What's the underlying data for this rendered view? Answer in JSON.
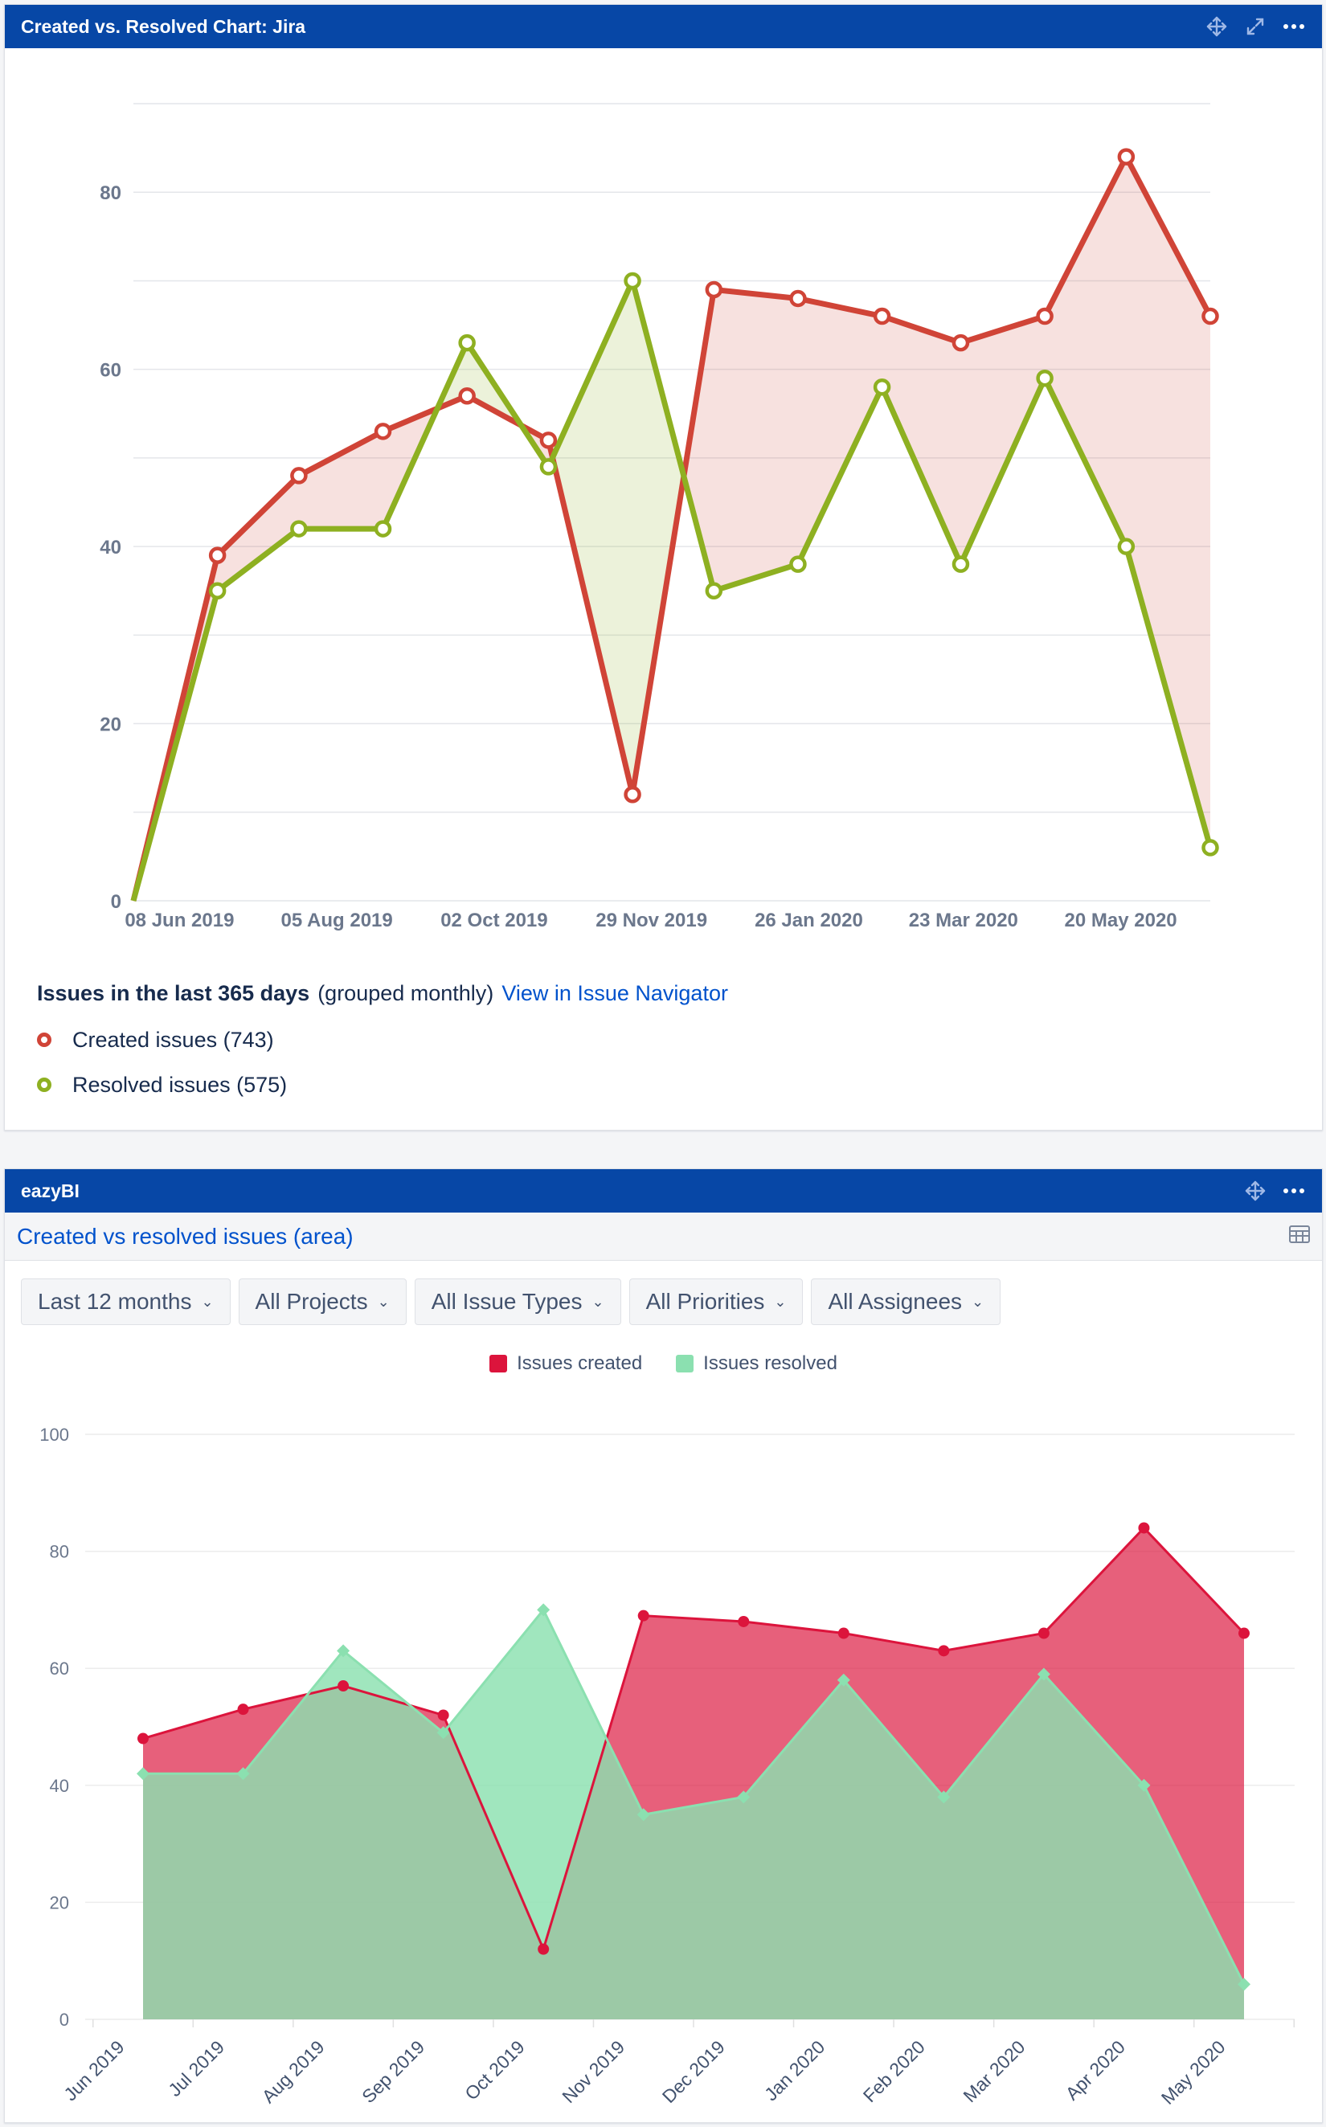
{
  "gadget1": {
    "title": "Created vs. Resolved Chart: Jira",
    "legend": {
      "heading": "Issues in the last 365 days",
      "grouping": "(grouped monthly)",
      "link": "View in Issue Navigator",
      "created_label": "Created issues (743)",
      "resolved_label": "Resolved issues (575)"
    }
  },
  "gadget2": {
    "title": "eazyBI",
    "report_name": "Created vs resolved issues (area)",
    "filters": [
      "Last 12 months",
      "All Projects",
      "All Issue Types",
      "All Priorities",
      "All Assignees"
    ],
    "legend": {
      "created": "Issues created",
      "resolved": "Issues resolved"
    }
  },
  "icons": [
    "move-icon",
    "expand-icon",
    "more-icon",
    "table-icon",
    "chevron-down-icon"
  ],
  "colors": {
    "header": "#0747a6",
    "created": "#d04437",
    "resolved": "#8eb021",
    "created_area": "#dc143c",
    "resolved_area": "#8be0b0",
    "link": "#0052cc"
  },
  "chart_data": [
    {
      "type": "line",
      "title": "",
      "ylim": [
        0,
        90
      ],
      "yticks": [
        0,
        20,
        40,
        60,
        80
      ],
      "xtick_labels": [
        "08 Jun 2019",
        "05 Aug 2019",
        "02 Oct 2019",
        "29 Nov 2019",
        "26 Jan 2020",
        "23 Mar 2020",
        "20 May 2020"
      ],
      "x": [
        "2019-05-22",
        "2019-06-22",
        "2019-07-22",
        "2019-08-22",
        "2019-09-22",
        "2019-10-22",
        "2019-11-22",
        "2019-12-22",
        "2020-01-22",
        "2020-02-22",
        "2020-03-22",
        "2020-04-22",
        "2020-05-22",
        "2020-06-22"
      ],
      "series": [
        {
          "name": "Created issues",
          "values": [
            0,
            39,
            48,
            53,
            57,
            52,
            12,
            69,
            68,
            66,
            63,
            66,
            84,
            66
          ]
        },
        {
          "name": "Resolved issues",
          "values": [
            0,
            35,
            42,
            42,
            63,
            49,
            70,
            35,
            38,
            58,
            38,
            59,
            40,
            6
          ]
        }
      ],
      "fill_between": true,
      "grid": true
    },
    {
      "type": "area",
      "title": "",
      "ylim": [
        0,
        100
      ],
      "yticks": [
        0,
        20,
        40,
        60,
        80,
        100
      ],
      "categories": [
        "Jun 2019",
        "Jul 2019",
        "Aug 2019",
        "Sep 2019",
        "Oct 2019",
        "Nov 2019",
        "Dec 2019",
        "Jan 2020",
        "Feb 2020",
        "Mar 2020",
        "Apr 2020",
        "May 2020"
      ],
      "series": [
        {
          "name": "Issues created",
          "values": [
            48,
            53,
            57,
            52,
            12,
            69,
            68,
            66,
            63,
            66,
            84,
            66
          ]
        },
        {
          "name": "Issues resolved",
          "values": [
            42,
            42,
            63,
            49,
            70,
            35,
            38,
            58,
            38,
            59,
            40,
            6
          ]
        }
      ],
      "legend": "top-center",
      "grid": true
    }
  ]
}
